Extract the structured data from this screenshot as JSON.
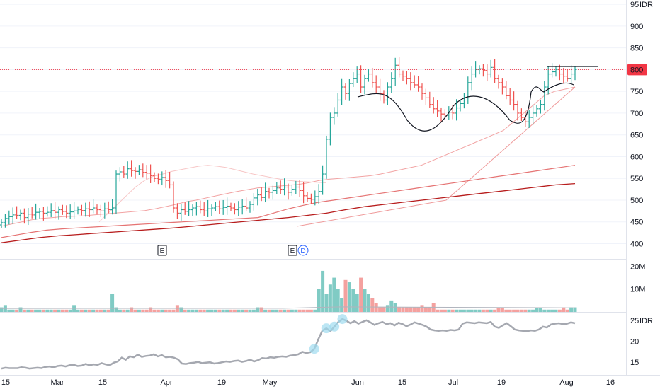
{
  "chart_data": [
    {
      "type": "bar",
      "panel": "price",
      "style": "ohlc-bars",
      "currency": "IDR",
      "last_price": "800",
      "y_ticks": [
        "400",
        "450",
        "500",
        "550",
        "600",
        "650",
        "700",
        "750",
        "800",
        "850",
        "900",
        "95"
      ],
      "ylim": [
        365,
        960
      ],
      "x_ticks": [
        "15",
        "Mar",
        "15",
        "Apr",
        "19",
        "May",
        "Jun",
        "15",
        "Jul",
        "19",
        "Aug",
        "16"
      ],
      "events": [
        "E",
        "E",
        "D"
      ],
      "closes": [
        448,
        458,
        462,
        466,
        465,
        470,
        460,
        468,
        466,
        472,
        474,
        470,
        472,
        476,
        472,
        478,
        474,
        470,
        473,
        475,
        478,
        476,
        480,
        478,
        482,
        478,
        475,
        480,
        478,
        482,
        560,
        565,
        560,
        572,
        568,
        566,
        570,
        564,
        562,
        556,
        550,
        548,
        552,
        545,
        535,
        482,
        470,
        478,
        474,
        478,
        482,
        485,
        478,
        475,
        480,
        482,
        485,
        480,
        483,
        486,
        482,
        478,
        484,
        486,
        482,
        490,
        505,
        512,
        506,
        520,
        518,
        522,
        528,
        525,
        530,
        518,
        525,
        530,
        522,
        510,
        504,
        502,
        508,
        520,
        560,
        640,
        690,
        700,
        730,
        760,
        745,
        768,
        780,
        790,
        760,
        780,
        790,
        770,
        760,
        745,
        730,
        760,
        780,
        810,
        790,
        785,
        780,
        770,
        765,
        760,
        745,
        735,
        720,
        710,
        705,
        698,
        695,
        702,
        700,
        712,
        722,
        735,
        770,
        790,
        800,
        802,
        798,
        790,
        805,
        780,
        770,
        760,
        740,
        730,
        720,
        700,
        690,
        680,
        690,
        700,
        710,
        720,
        760,
        790,
        795,
        800,
        790,
        785,
        780,
        790,
        800
      ],
      "series": [
        {
          "values": [
            440,
            445,
            450,
            455,
            458,
            460,
            462,
            463,
            464,
            466,
            468,
            470,
            472,
            474,
            476,
            480,
            485,
            490,
            496,
            500,
            505,
            510,
            515,
            520,
            524,
            528,
            530,
            532,
            534,
            536,
            540,
            545,
            548,
            550,
            552,
            554,
            556,
            560,
            565,
            570,
            575,
            580,
            590,
            600,
            610,
            620,
            630,
            640,
            650,
            660,
            680,
            700,
            720,
            740,
            750,
            755,
            760
          ]
        },
        {
          "values": [
            440,
            442,
            444,
            446,
            448,
            450,
            452,
            454,
            456,
            458,
            460,
            462,
            464,
            466,
            468,
            470,
            472,
            474,
            476,
            478,
            480,
            482,
            484,
            486,
            488,
            490,
            492,
            494,
            496,
            498,
            500,
            510,
            520,
            530,
            540,
            550,
            560,
            570,
            580,
            590,
            600,
            610,
            620,
            630,
            640,
            650,
            660,
            670,
            680,
            690,
            700,
            710,
            720,
            730,
            740,
            750,
            760
          ]
        },
        {
          "values": [
            414,
            420,
            426,
            431,
            434,
            436,
            438,
            440,
            442,
            444,
            446,
            448,
            450,
            452,
            454,
            456,
            458,
            460,
            470,
            480,
            488,
            495,
            500,
            505,
            510,
            515,
            520,
            525,
            530,
            535,
            540,
            545,
            550,
            555,
            560,
            565,
            570,
            575,
            580
          ]
        },
        {
          "values": [
            402,
            408,
            414,
            418,
            421,
            424,
            427,
            430,
            433,
            436,
            440,
            444,
            448,
            452,
            456,
            460,
            465,
            470,
            478,
            485,
            490,
            495,
            500,
            505,
            510,
            515,
            520,
            525,
            530,
            535,
            538
          ]
        },
        {
          "values": [
            450,
            470,
            490,
            510,
            530,
            545,
            555,
            560,
            566,
            570,
            574,
            578,
            580,
            578,
            575,
            570,
            565,
            560,
            556,
            552,
            548,
            545,
            543,
            542,
            541,
            540
          ]
        }
      ]
    },
    {
      "type": "bar",
      "panel": "volume",
      "y_ticks": [
        "20M",
        "10M"
      ],
      "ylim": [
        0,
        22
      ],
      "values": [
        2,
        3,
        1,
        1,
        1,
        2,
        1,
        1,
        1,
        1,
        1,
        1,
        1,
        1,
        1,
        1,
        1,
        1,
        1,
        3,
        1,
        1,
        1,
        1,
        1,
        1,
        1,
        1,
        1,
        8,
        2,
        1,
        1,
        1,
        2,
        1,
        1,
        1,
        1,
        2,
        1,
        1,
        1,
        1,
        1,
        1,
        3,
        2,
        1,
        1,
        1,
        1,
        1,
        1,
        1,
        1,
        1,
        1,
        1,
        1,
        1,
        1,
        1,
        1,
        1,
        1,
        1,
        2,
        2,
        1,
        1,
        1,
        1,
        1,
        1,
        1,
        1,
        1,
        1,
        1,
        1,
        1,
        1,
        10,
        18,
        8,
        12,
        15,
        10,
        6,
        14,
        13,
        10,
        8,
        15,
        10,
        8,
        6,
        4,
        2,
        2,
        3,
        5,
        4,
        2,
        2,
        2,
        2,
        2,
        2,
        3,
        2,
        2,
        4,
        1,
        1,
        1,
        1,
        1,
        1,
        1,
        1,
        1,
        1,
        1,
        1,
        1,
        1,
        1,
        1,
        2,
        2,
        1,
        1,
        1,
        1,
        1,
        1,
        1,
        1,
        2,
        2,
        1,
        1,
        1,
        1,
        1,
        2,
        1,
        2,
        2
      ]
    },
    {
      "type": "line",
      "panel": "indicator",
      "y_ticks": [
        "25",
        "20",
        "15"
      ],
      "currency": "IDR",
      "ylim": [
        12,
        27
      ],
      "values": [
        13.5,
        13.7,
        13.6,
        13.6,
        13.6,
        13.8,
        13.7,
        13.5,
        13.6,
        13.7,
        13.6,
        13.9,
        14,
        13.8,
        14.1,
        14.2,
        14,
        14.3,
        14.4,
        14.1,
        14.2,
        14.6,
        14.3,
        14.5,
        14.4,
        14.8,
        14.5,
        14.3,
        14.9,
        15.2,
        16.1,
        15.6,
        16.4,
        16.2,
        16.8,
        16.3,
        16.5,
        16.6,
        16.9,
        16.4,
        16.7,
        16.2,
        16.3,
        16.1,
        15.7,
        14.7,
        14.6,
        14.8,
        14.9,
        15.1,
        14.8,
        14.9,
        15,
        14.7,
        14.8,
        15,
        15.2,
        15.1,
        15.3,
        15.4,
        15.1,
        15.3,
        15.6,
        15.2,
        15.5,
        16,
        15.9,
        16.2,
        16.1,
        16.3,
        16.4,
        16.3,
        16.6,
        16.7,
        16.9,
        17.5,
        17.2,
        17.4,
        18.2,
        20.5,
        22.5,
        23.1,
        22.4,
        23.5,
        24.6,
        25.3,
        24.9,
        24.3,
        24.8,
        24.2,
        24.6,
        25,
        24.5,
        23.9,
        24.3,
        24.6,
        24.1,
        24.3,
        23.8,
        24.4,
        24.1,
        23.6,
        24,
        24.5,
        24.2,
        23.9,
        23.5,
        22.8,
        22.6,
        22.5,
        22.6,
        22.5,
        22.7,
        22.6,
        22.8,
        24.2,
        24.5,
        24.4,
        24.3,
        24.5,
        24.4,
        24.3,
        24.6,
        23.5,
        23.2,
        23.8,
        24.3,
        23.6,
        22.8,
        22.6,
        22.5,
        22.4,
        22.6,
        22.5,
        22.8,
        23.5,
        23.3,
        24,
        24.2,
        24.3,
        24.1,
        24.2,
        24.5,
        24.3
      ]
    }
  ]
}
